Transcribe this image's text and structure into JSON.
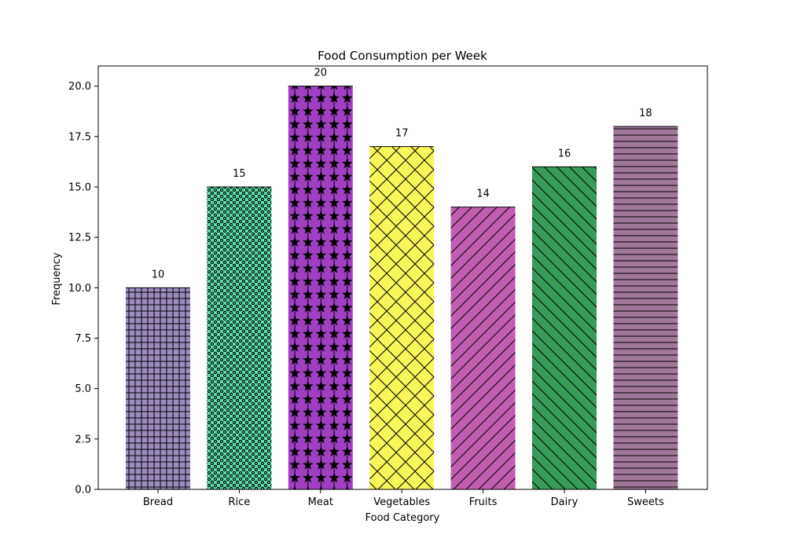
{
  "chart_data": {
    "type": "bar",
    "title": "Food Consumption per Week",
    "xlabel": "Food Category",
    "ylabel": "Frequency",
    "categories": [
      "Bread",
      "Rice",
      "Meat",
      "Vegetables",
      "Fruits",
      "Dairy",
      "Sweets"
    ],
    "values": [
      10,
      15,
      20,
      17,
      14,
      16,
      18
    ],
    "data_labels": [
      "10",
      "15",
      "20",
      "17",
      "14",
      "16",
      "18"
    ],
    "ylim": [
      0,
      21
    ],
    "yticks": [
      0,
      2.5,
      5,
      7.5,
      10,
      12.5,
      15,
      17.5,
      20
    ],
    "ytick_labels": [
      "0.0",
      "2.5",
      "5.0",
      "7.5",
      "10.0",
      "12.5",
      "15.0",
      "17.5",
      "20.0"
    ],
    "grid": false,
    "legend": "none",
    "bar_colors": [
      "#9c8bbd",
      "#5fe2ad",
      "#a13fc2",
      "#f7f65a",
      "#c25eb1",
      "#369b57",
      "#a0799a"
    ],
    "bar_hatches": [
      "grid",
      "small-circles",
      "stars",
      "crosshatch",
      "forward-diagonal",
      "back-diagonal",
      "horizontal"
    ],
    "edge_color": "#000000"
  }
}
